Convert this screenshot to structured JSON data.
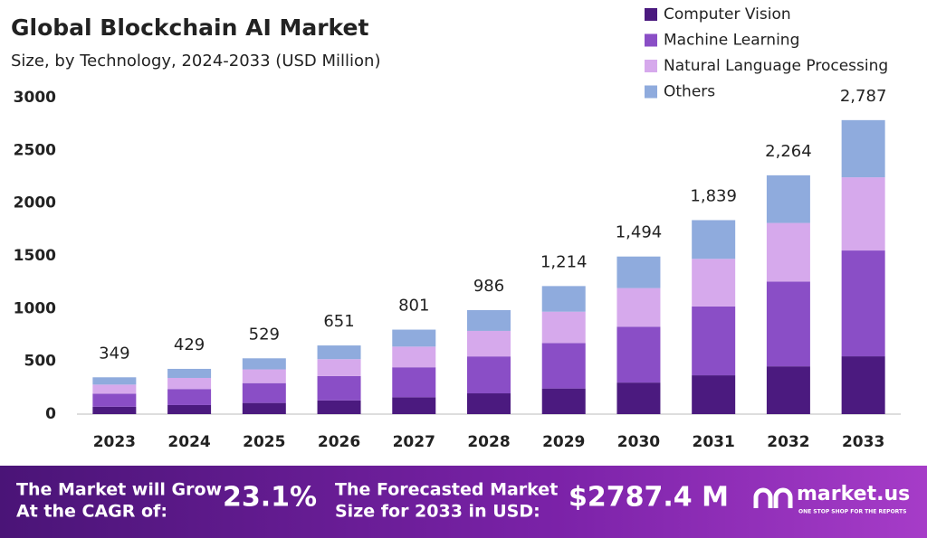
{
  "chart_data": {
    "type": "stacked_bar",
    "title": "Global Blockchain AI Market",
    "subtitle": "Size, by Technology, 2024-2033 (USD Million)",
    "categories": [
      "2023",
      "2024",
      "2025",
      "2026",
      "2027",
      "2028",
      "2029",
      "2030",
      "2031",
      "2032",
      "2033"
    ],
    "series": [
      {
        "name": "Computer Vision",
        "color": "#4b1a7f",
        "values": [
          70,
          86,
          106,
          130,
          160,
          197,
          243,
          299,
          368,
          453,
          548
        ]
      },
      {
        "name": "Machine Learning",
        "color": "#8a4ec6",
        "values": [
          124,
          152,
          188,
          231,
          284,
          350,
          431,
          530,
          653,
          804,
          1003
        ]
      },
      {
        "name": "Natural Language Processing",
        "color": "#d6a9ec",
        "values": [
          86,
          105,
          130,
          160,
          196,
          242,
          297,
          366,
          451,
          555,
          694
        ]
      },
      {
        "name": "Others",
        "color": "#8fabdd",
        "values": [
          69,
          86,
          105,
          130,
          161,
          197,
          243,
          299,
          367,
          452,
          542
        ]
      }
    ],
    "totals": [
      349,
      429,
      529,
      651,
      801,
      986,
      1214,
      1494,
      1839,
      2264,
      2787
    ],
    "total_labels": [
      "349",
      "429",
      "529",
      "651",
      "801",
      "986",
      "1,214",
      "1,494",
      "1,839",
      "2,264",
      "2,787"
    ],
    "ylim": [
      0,
      3000
    ],
    "yticks": [
      0,
      500,
      1000,
      1500,
      2000,
      2500,
      3000
    ],
    "legend": "top-right"
  },
  "footer": {
    "cagr_text": [
      "The Market will Grow",
      "At the CAGR of:"
    ],
    "cagr_value": "23.1%",
    "forecast_text": [
      "The Forecasted Market",
      "Size for 2033 in USD:"
    ],
    "forecast_value": "$2787.4 M",
    "brand": "market.us",
    "tagline": "ONE STOP SHOP FOR THE REPORTS"
  }
}
